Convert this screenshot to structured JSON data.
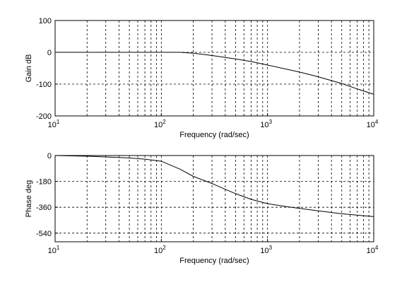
{
  "chart_data": [
    {
      "type": "line",
      "xlabel": "Frequency (rad/sec)",
      "ylabel": "Gain dB",
      "xscale": "log",
      "xlim": [
        10,
        10000
      ],
      "ylim": [
        -200,
        100
      ],
      "grid": true,
      "xticks": [
        {
          "base": "10",
          "exp": "1"
        },
        {
          "base": "10",
          "exp": "2"
        },
        {
          "base": "10",
          "exp": "3"
        },
        {
          "base": "10",
          "exp": "4"
        }
      ],
      "yticks": [
        "100",
        "0",
        "-100",
        "-200"
      ],
      "line_color": "#000000",
      "series": [
        {
          "x": [
            10,
            20,
            50,
            100,
            150,
            200,
            300,
            400,
            500,
            700,
            1000,
            2000,
            3000,
            5000,
            7000,
            10000
          ],
          "y": [
            0,
            0,
            0,
            0,
            0,
            -3,
            -10,
            -16,
            -21,
            -29,
            -40,
            -62,
            -77,
            -98,
            -115,
            -132
          ]
        }
      ]
    },
    {
      "type": "line",
      "xlabel": "Frequency (rad/sec)",
      "ylabel": "Phase deg",
      "xscale": "log",
      "xlim": [
        10,
        10000
      ],
      "ylim": [
        -600,
        0
      ],
      "grid": true,
      "xticks": [
        {
          "base": "10",
          "exp": "1"
        },
        {
          "base": "10",
          "exp": "2"
        },
        {
          "base": "10",
          "exp": "3"
        },
        {
          "base": "10",
          "exp": "4"
        }
      ],
      "yticks": [
        "0",
        "-180",
        "-360",
        "-540"
      ],
      "line_color": "#000000",
      "series": [
        {
          "x": [
            10,
            20,
            30,
            50,
            70,
            100,
            150,
            200,
            300,
            400,
            500,
            700,
            1000,
            1500,
            2000,
            3000,
            5000,
            7000,
            10000
          ],
          "y": [
            0,
            -5,
            -10,
            -17,
            -25,
            -40,
            -95,
            -145,
            -195,
            -235,
            -265,
            -305,
            -335,
            -355,
            -368,
            -385,
            -405,
            -415,
            -425
          ]
        }
      ]
    }
  ]
}
